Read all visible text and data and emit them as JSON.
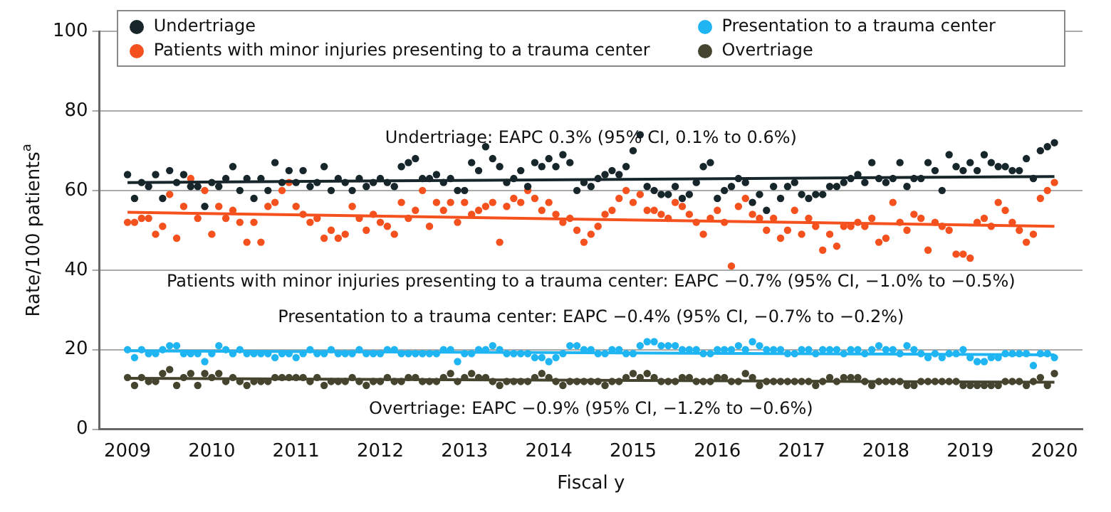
{
  "chart_data": {
    "type": "scatter",
    "xlabel": "Fiscal y",
    "ylabel": "Rate/100 patients$^{a}$",
    "x": [
      "2009-01",
      "2009-02",
      "2009-03",
      "2009-04",
      "2009-05",
      "2009-06",
      "2009-07",
      "2009-08",
      "2009-09",
      "2009-10",
      "2009-11",
      "2009-12",
      "2010-01",
      "2010-02",
      "2010-03",
      "2010-04",
      "2010-05",
      "2010-06",
      "2010-07",
      "2010-08",
      "2010-09",
      "2010-10",
      "2010-11",
      "2010-12",
      "2011-01",
      "2011-02",
      "2011-03",
      "2011-04",
      "2011-05",
      "2011-06",
      "2011-07",
      "2011-08",
      "2011-09",
      "2011-10",
      "2011-11",
      "2011-12",
      "2012-01",
      "2012-02",
      "2012-03",
      "2012-04",
      "2012-05",
      "2012-06",
      "2012-07",
      "2012-08",
      "2012-09",
      "2012-10",
      "2012-11",
      "2012-12",
      "2013-01",
      "2013-02",
      "2013-03",
      "2013-04",
      "2013-05",
      "2013-06",
      "2013-07",
      "2013-08",
      "2013-09",
      "2013-10",
      "2013-11",
      "2013-12",
      "2014-01",
      "2014-02",
      "2014-03",
      "2014-04",
      "2014-05",
      "2014-06",
      "2014-07",
      "2014-08",
      "2014-09",
      "2014-10",
      "2014-11",
      "2014-12",
      "2015-01",
      "2015-02",
      "2015-03",
      "2015-04",
      "2015-05",
      "2015-06",
      "2015-07",
      "2015-08",
      "2015-09",
      "2015-10",
      "2015-11",
      "2015-12",
      "2016-01",
      "2016-02",
      "2016-03",
      "2016-04",
      "2016-05",
      "2016-06",
      "2016-07",
      "2016-08",
      "2016-09",
      "2016-10",
      "2016-11",
      "2016-12",
      "2017-01",
      "2017-02",
      "2017-03",
      "2017-04",
      "2017-05",
      "2017-06",
      "2017-07",
      "2017-08",
      "2017-09",
      "2017-10",
      "2017-11",
      "2017-12",
      "2018-01",
      "2018-02",
      "2018-03",
      "2018-04",
      "2018-05",
      "2018-06",
      "2018-07",
      "2018-08",
      "2018-09",
      "2018-10",
      "2018-11",
      "2018-12",
      "2019-01",
      "2019-02",
      "2019-03",
      "2019-04",
      "2019-05",
      "2019-06",
      "2019-07",
      "2019-08",
      "2019-09",
      "2019-10",
      "2019-11",
      "2019-12",
      "2020-01"
    ],
    "series": [
      {
        "name": "Undertriage",
        "color": "#17262b",
        "values": [
          64,
          58,
          62,
          61,
          64,
          58,
          65,
          62,
          64,
          61,
          61,
          56,
          62,
          61,
          63,
          66,
          60,
          63,
          58,
          63,
          60,
          67,
          62,
          65,
          62,
          65,
          61,
          62,
          66,
          60,
          63,
          62,
          60,
          63,
          61,
          62,
          63,
          62,
          61,
          66,
          67,
          68,
          63,
          63,
          64,
          62,
          63,
          60,
          60,
          67,
          65,
          71,
          68,
          66,
          62,
          63,
          65,
          61,
          67,
          66,
          68,
          66,
          69,
          67,
          60,
          62,
          61,
          63,
          64,
          65,
          64,
          66,
          70,
          74,
          61,
          60,
          59,
          59,
          61,
          58,
          59,
          62,
          66,
          67,
          58,
          60,
          61,
          63,
          62,
          57,
          59,
          55,
          61,
          58,
          61,
          62,
          59,
          58,
          59,
          59,
          61,
          61,
          62,
          63,
          64,
          62,
          67,
          63,
          62,
          63,
          67,
          61,
          63,
          63,
          67,
          65,
          60,
          69,
          66,
          65,
          67,
          65,
          69,
          67,
          66,
          66,
          65,
          65,
          68,
          63,
          70,
          71,
          72
        ]
      },
      {
        "name": "Patients with minor injuries presenting to a trauma center",
        "color": "#f4511e",
        "values": [
          52,
          52,
          53,
          53,
          49,
          51,
          59,
          48,
          56,
          63,
          53,
          60,
          49,
          56,
          53,
          55,
          52,
          47,
          52,
          47,
          56,
          57,
          60,
          62,
          56,
          54,
          52,
          53,
          48,
          50,
          48,
          49,
          56,
          53,
          50,
          54,
          52,
          51,
          49,
          57,
          53,
          55,
          60,
          51,
          57,
          55,
          57,
          52,
          57,
          54,
          55,
          56,
          57,
          47,
          56,
          58,
          57,
          60,
          58,
          55,
          57,
          54,
          52,
          53,
          50,
          47,
          49,
          51,
          54,
          55,
          58,
          60,
          57,
          59,
          55,
          55,
          54,
          53,
          57,
          56,
          54,
          52,
          49,
          53,
          55,
          52,
          41,
          56,
          58,
          54,
          53,
          50,
          53,
          48,
          50,
          55,
          49,
          53,
          51,
          45,
          49,
          46,
          51,
          51,
          52,
          51,
          53,
          47,
          48,
          57,
          52,
          50,
          54,
          53,
          45,
          52,
          51,
          50,
          44,
          44,
          43,
          52,
          53,
          51,
          57,
          55,
          52,
          50,
          47,
          49,
          58,
          60,
          62
        ]
      },
      {
        "name": "Presentation to a trauma center",
        "color": "#1fb5f2",
        "values": [
          20,
          18,
          20,
          19,
          19,
          20,
          21,
          21,
          19,
          19,
          19,
          17,
          19,
          21,
          20,
          19,
          20,
          19,
          19,
          19,
          19,
          18,
          19,
          19,
          18,
          19,
          20,
          19,
          19,
          20,
          19,
          19,
          19,
          20,
          19,
          19,
          19,
          20,
          20,
          19,
          19,
          19,
          19,
          19,
          19,
          20,
          20,
          17,
          19,
          19,
          20,
          20,
          21,
          20,
          19,
          19,
          19,
          19,
          18,
          18,
          17,
          18,
          19,
          21,
          21,
          20,
          20,
          19,
          19,
          20,
          20,
          19,
          19,
          21,
          22,
          22,
          21,
          21,
          21,
          20,
          20,
          20,
          19,
          19,
          20,
          20,
          20,
          21,
          20,
          22,
          21,
          20,
          20,
          20,
          19,
          19,
          20,
          20,
          19,
          20,
          20,
          20,
          19,
          20,
          20,
          19,
          20,
          21,
          20,
          20,
          19,
          21,
          20,
          19,
          18,
          19,
          18,
          19,
          19,
          20,
          18,
          17,
          17,
          18,
          18,
          19,
          19,
          19,
          19,
          16,
          19,
          19,
          18
        ]
      },
      {
        "name": "Overtriage",
        "color": "#45452f",
        "values": [
          13,
          11,
          13,
          12,
          12,
          14,
          15,
          11,
          13,
          14,
          11,
          14,
          13,
          14,
          12,
          13,
          12,
          11,
          12,
          12,
          12,
          13,
          13,
          13,
          13,
          13,
          12,
          13,
          11,
          12,
          12,
          12,
          13,
          12,
          11,
          12,
          12,
          13,
          12,
          12,
          13,
          13,
          12,
          12,
          12,
          13,
          14,
          12,
          13,
          14,
          13,
          13,
          12,
          11,
          12,
          12,
          12,
          12,
          13,
          14,
          13,
          12,
          11,
          12,
          12,
          12,
          12,
          12,
          11,
          12,
          12,
          13,
          14,
          13,
          14,
          13,
          12,
          12,
          12,
          13,
          13,
          12,
          12,
          12,
          13,
          13,
          12,
          12,
          14,
          13,
          11,
          12,
          12,
          12,
          12,
          12,
          12,
          12,
          11,
          12,
          13,
          12,
          13,
          13,
          13,
          12,
          11,
          12,
          12,
          12,
          12,
          11,
          11,
          12,
          12,
          12,
          12,
          12,
          12,
          11,
          11,
          11,
          11,
          11,
          11,
          12,
          12,
          12,
          11,
          12,
          13,
          11,
          14
        ]
      },
      {
        "type": "line",
        "marker": "none",
        "color": "#17262b",
        "x": [
          "2009-01",
          "2020-01"
        ],
        "values": [
          62,
          63.5
        ]
      },
      {
        "type": "line",
        "marker": "none",
        "color": "#f4511e",
        "x": [
          "2009-01",
          "2020-01"
        ],
        "values": [
          54.5,
          51
        ]
      },
      {
        "type": "line",
        "marker": "none",
        "color": "#1fb5f2",
        "x": [
          "2009-01",
          "2020-01"
        ],
        "values": [
          19.7,
          18.7
        ]
      },
      {
        "type": "line",
        "marker": "none",
        "color": "#45452f",
        "x": [
          "2009-01",
          "2020-01"
        ],
        "values": [
          12.8,
          11.8
        ]
      }
    ],
    "annotations": [
      "Undertriage: EAPC 0.3% (95% CI, 0.1% to 0.6%)",
      "Patients with minor injuries presenting to a trauma center: EAPC −0.7% (95% CI, −1.0% to −0.5%)",
      "Presentation to a trauma center: EAPC −0.4% (95% CI, −0.7% to −0.2%)",
      "Overtriage: EAPC −0.9% (95% CI, −1.2% to −0.6%)"
    ],
    "xlim": [
      "2008-09",
      "2020-05"
    ],
    "xticks": [
      "2009",
      "2010",
      "2011",
      "2012",
      "2013",
      "2014",
      "2015",
      "2016",
      "2017",
      "2018",
      "2019",
      "2020"
    ],
    "ylim": [
      0,
      100
    ],
    "yticks": [
      0,
      20,
      40,
      60,
      80,
      100
    ],
    "grid": "y",
    "legend": "top",
    "marker": "circle"
  }
}
